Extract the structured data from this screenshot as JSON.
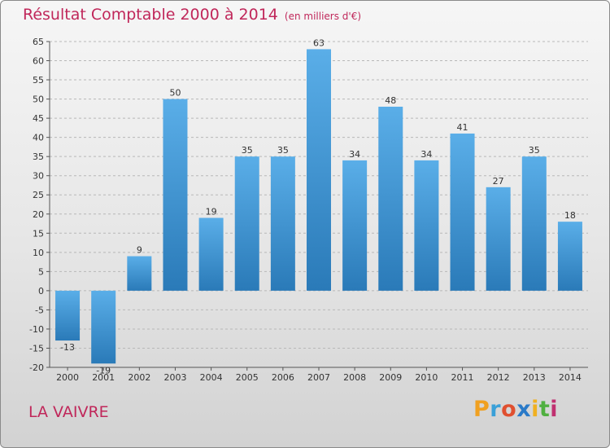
{
  "title": "Résultat Comptable 2000 à 2014",
  "subtitle": "(en milliers d'€)",
  "commune": "LA VAIVRE",
  "logo": {
    "text": "Proxiti",
    "letters": [
      "P",
      "r",
      "o",
      "x",
      "i",
      "t",
      "i"
    ],
    "colors": [
      "#f0a020",
      "#3aa0d8",
      "#e05030",
      "#2a7ac8",
      "#f0b020",
      "#50b040",
      "#c03070"
    ]
  },
  "colors": {
    "title": "#c0275a",
    "bar_top": "#5aaee8",
    "bar_bottom": "#2a7ab8",
    "grid": "#b8b8b8"
  },
  "chart_data": {
    "type": "bar",
    "title": "Résultat Comptable 2000 à 2014",
    "ylabel": "(en milliers d'€)",
    "xlabel": "",
    "categories": [
      "2000",
      "2001",
      "2002",
      "2003",
      "2004",
      "2005",
      "2006",
      "2007",
      "2008",
      "2009",
      "2010",
      "2011",
      "2012",
      "2013",
      "2014"
    ],
    "values": [
      -13,
      -19,
      9,
      50,
      19,
      35,
      35,
      63,
      34,
      48,
      34,
      41,
      27,
      35,
      18
    ],
    "ylim": [
      -20,
      65
    ],
    "yticks": [
      -20,
      -15,
      -10,
      -5,
      0,
      5,
      10,
      15,
      20,
      25,
      30,
      35,
      40,
      45,
      50,
      55,
      60,
      65
    ],
    "grid": true
  }
}
